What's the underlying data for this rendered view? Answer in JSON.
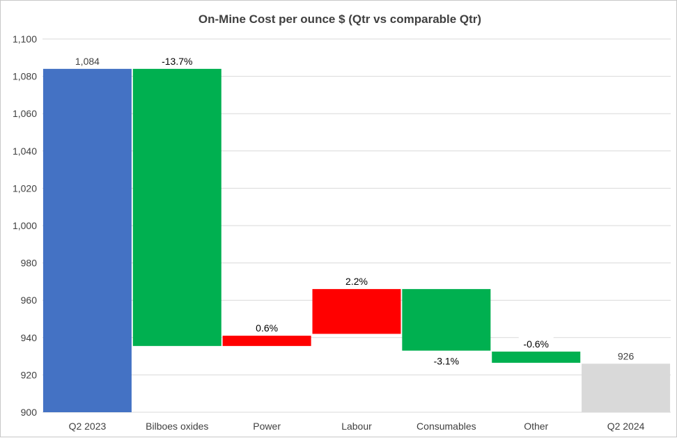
{
  "chart_data": {
    "type": "waterfall",
    "title": "On-Mine Cost per ounce $  (Qtr vs comparable Qtr)",
    "xlabel": "",
    "ylabel": "",
    "ylim": [
      900,
      1100
    ],
    "ytick_step": 20,
    "yticks": [
      "900",
      "920",
      "940",
      "960",
      "980",
      "1,000",
      "1,020",
      "1,040",
      "1,060",
      "1,080",
      "1,100"
    ],
    "grid": true,
    "legend": "none",
    "colors": {
      "start_total": "#4472c4",
      "end_total": "#d9d9d9",
      "increase": "#ff0000",
      "decrease": "#00b050"
    },
    "categories": [
      "Q2 2023",
      "Bilboes oxides",
      "Power",
      "Labour",
      "Consumables",
      "Other",
      "Q2 2024"
    ],
    "bars": [
      {
        "category": "Q2 2023",
        "kind": "total",
        "start": 900,
        "end": 1084,
        "label": "1,084",
        "label_pos": "above"
      },
      {
        "category": "Bilboes oxides",
        "kind": "decrease",
        "start": 1084,
        "end": 935.5,
        "label": "-13.7%",
        "label_pos": "above"
      },
      {
        "category": "Power",
        "kind": "increase",
        "start": 935.5,
        "end": 941,
        "label": "0.6%",
        "label_pos": "above"
      },
      {
        "category": "Labour",
        "kind": "increase",
        "start": 942,
        "end": 966,
        "label": "2.2%",
        "label_pos": "above"
      },
      {
        "category": "Consumables",
        "kind": "decrease",
        "start": 966,
        "end": 933,
        "label": "-3.1%",
        "label_pos": "below"
      },
      {
        "category": "Other",
        "kind": "decrease",
        "start": 932.5,
        "end": 926.5,
        "label": "-0.6%",
        "label_pos": "above"
      },
      {
        "category": "Q2 2024",
        "kind": "end_total",
        "start": 900,
        "end": 926,
        "label": "926",
        "label_pos": "above"
      }
    ]
  }
}
